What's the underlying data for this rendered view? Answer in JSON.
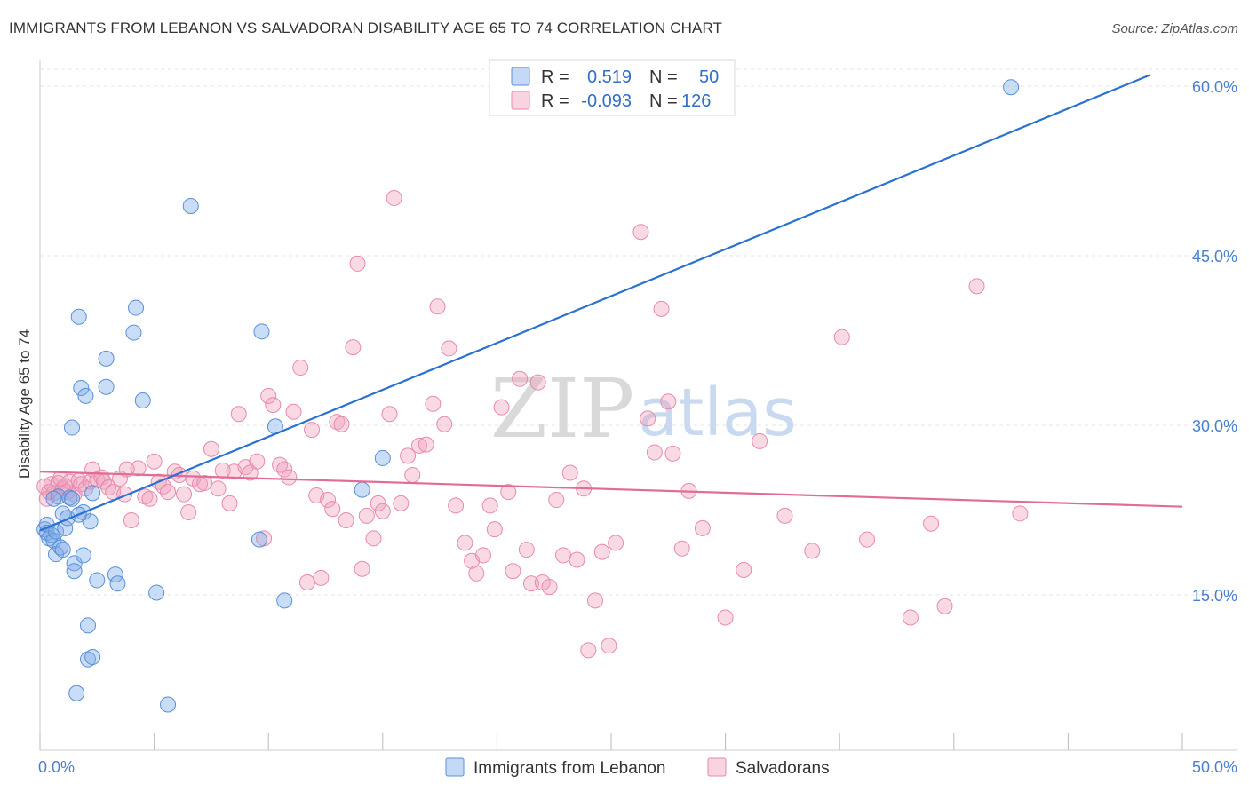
{
  "title": "IMMIGRANTS FROM LEBANON VS SALVADORAN DISABILITY AGE 65 TO 74 CORRELATION CHART",
  "source": "Source: ZipAtlas.com",
  "watermark": {
    "zip": "ZIP",
    "atlas": "atlas"
  },
  "legend": {
    "rows": [
      {
        "r_label": "R =",
        "r_value": "0.519",
        "n_label": "N =",
        "n_value": "50",
        "color": "#7aaae8"
      },
      {
        "r_label": "R =",
        "r_value": "-0.093",
        "n_label": "N =",
        "n_value": "126",
        "color": "#f0a0bc"
      }
    ]
  },
  "bottom_legend": [
    {
      "label": "Immigrants from Lebanon",
      "color": "#7aaae8"
    },
    {
      "label": "Salvadorans",
      "color": "#f0a0bc"
    }
  ],
  "chart_data": {
    "type": "scatter",
    "ylabel": "Disability Age 65 to 74",
    "xlim": [
      0,
      50
    ],
    "ylim": [
      0,
      60
    ],
    "x_tick_labels": [
      "0.0%",
      "50.0%"
    ],
    "y_ticks": [
      15,
      30,
      45,
      60
    ],
    "y_tick_labels": [
      "15.0%",
      "30.0%",
      "45.0%",
      "60.0%"
    ],
    "grid": true,
    "series": [
      {
        "name": "Immigrants from Lebanon",
        "color": "#7aaae8",
        "line_color": "#2a72d0",
        "trend": [
          [
            0,
            20.7
          ],
          [
            48.6,
            61.0
          ]
        ],
        "points": [
          [
            0.2,
            20.8
          ],
          [
            0.3,
            21.2
          ],
          [
            0.3,
            20.5
          ],
          [
            0.4,
            20.0
          ],
          [
            0.5,
            20.3
          ],
          [
            0.6,
            19.8
          ],
          [
            0.7,
            20.6
          ],
          [
            0.7,
            18.6
          ],
          [
            0.8,
            23.7
          ],
          [
            0.9,
            19.2
          ],
          [
            1.0,
            19.0
          ],
          [
            1.0,
            22.2
          ],
          [
            1.1,
            20.9
          ],
          [
            1.2,
            21.8
          ],
          [
            1.3,
            23.6
          ],
          [
            1.4,
            23.5
          ],
          [
            1.4,
            29.8
          ],
          [
            1.5,
            17.8
          ],
          [
            1.5,
            17.1
          ],
          [
            1.6,
            6.3
          ],
          [
            1.7,
            39.6
          ],
          [
            1.8,
            33.3
          ],
          [
            1.9,
            22.3
          ],
          [
            1.9,
            18.5
          ],
          [
            2.0,
            32.6
          ],
          [
            2.1,
            12.3
          ],
          [
            2.1,
            9.3
          ],
          [
            2.2,
            21.5
          ],
          [
            2.3,
            9.5
          ],
          [
            2.5,
            16.3
          ],
          [
            2.9,
            35.9
          ],
          [
            2.9,
            33.4
          ],
          [
            3.3,
            16.8
          ],
          [
            3.4,
            16.0
          ],
          [
            4.1,
            38.2
          ],
          [
            4.2,
            40.4
          ],
          [
            4.5,
            32.2
          ],
          [
            5.1,
            15.2
          ],
          [
            5.6,
            5.3
          ],
          [
            6.6,
            49.4
          ],
          [
            9.6,
            19.9
          ],
          [
            9.7,
            38.3
          ],
          [
            10.3,
            29.9
          ],
          [
            10.7,
            14.5
          ],
          [
            14.1,
            24.3
          ],
          [
            15.0,
            27.1
          ],
          [
            2.3,
            24.0
          ],
          [
            1.7,
            22.1
          ],
          [
            0.6,
            23.5
          ],
          [
            42.5,
            59.9
          ]
        ]
      },
      {
        "name": "Salvadorans",
        "color": "#f0a0bc",
        "line_color": "#e36c96",
        "trend": [
          [
            0,
            25.9
          ],
          [
            50,
            22.8
          ]
        ],
        "points": [
          [
            0.2,
            24.6
          ],
          [
            0.3,
            23.5
          ],
          [
            0.5,
            24.8
          ],
          [
            0.6,
            24.0
          ],
          [
            0.8,
            24.9
          ],
          [
            1.0,
            24.4
          ],
          [
            1.2,
            24.1
          ],
          [
            1.3,
            25.0
          ],
          [
            1.5,
            23.9
          ],
          [
            1.7,
            25.1
          ],
          [
            1.8,
            24.8
          ],
          [
            2.0,
            24.4
          ],
          [
            2.2,
            25.0
          ],
          [
            2.3,
            26.1
          ],
          [
            2.5,
            25.2
          ],
          [
            2.7,
            25.4
          ],
          [
            2.8,
            25.0
          ],
          [
            3.0,
            24.5
          ],
          [
            3.2,
            24.1
          ],
          [
            3.5,
            25.3
          ],
          [
            3.7,
            23.9
          ],
          [
            3.8,
            26.1
          ],
          [
            4.0,
            21.6
          ],
          [
            4.3,
            26.2
          ],
          [
            4.6,
            23.7
          ],
          [
            4.8,
            23.5
          ],
          [
            5.0,
            26.8
          ],
          [
            5.2,
            25.0
          ],
          [
            5.4,
            24.6
          ],
          [
            5.6,
            24.1
          ],
          [
            5.9,
            25.9
          ],
          [
            6.1,
            25.6
          ],
          [
            6.3,
            23.9
          ],
          [
            6.5,
            22.3
          ],
          [
            6.7,
            25.3
          ],
          [
            7.0,
            24.8
          ],
          [
            7.2,
            24.9
          ],
          [
            7.5,
            27.9
          ],
          [
            7.8,
            24.4
          ],
          [
            8.0,
            26.0
          ],
          [
            8.3,
            23.1
          ],
          [
            8.5,
            25.9
          ],
          [
            8.7,
            31.0
          ],
          [
            9.0,
            26.3
          ],
          [
            9.2,
            25.8
          ],
          [
            9.5,
            26.8
          ],
          [
            9.8,
            20.0
          ],
          [
            10.0,
            32.6
          ],
          [
            10.2,
            31.8
          ],
          [
            10.5,
            26.5
          ],
          [
            10.7,
            26.1
          ],
          [
            10.9,
            25.4
          ],
          [
            11.1,
            31.2
          ],
          [
            11.4,
            35.1
          ],
          [
            11.7,
            16.1
          ],
          [
            11.9,
            29.6
          ],
          [
            12.1,
            23.8
          ],
          [
            12.3,
            16.5
          ],
          [
            12.6,
            23.4
          ],
          [
            12.8,
            22.6
          ],
          [
            13.0,
            30.3
          ],
          [
            13.2,
            30.1
          ],
          [
            13.4,
            21.6
          ],
          [
            13.7,
            36.9
          ],
          [
            13.9,
            44.3
          ],
          [
            14.1,
            17.3
          ],
          [
            14.3,
            22.0
          ],
          [
            14.6,
            20.0
          ],
          [
            14.8,
            23.1
          ],
          [
            15.0,
            22.4
          ],
          [
            15.3,
            31.0
          ],
          [
            15.5,
            50.1
          ],
          [
            15.8,
            23.1
          ],
          [
            16.1,
            27.3
          ],
          [
            16.3,
            25.6
          ],
          [
            16.6,
            28.2
          ],
          [
            16.9,
            28.3
          ],
          [
            17.2,
            31.9
          ],
          [
            17.4,
            40.5
          ],
          [
            17.7,
            30.1
          ],
          [
            17.9,
            36.8
          ],
          [
            18.2,
            22.9
          ],
          [
            18.6,
            19.6
          ],
          [
            18.9,
            18.0
          ],
          [
            19.1,
            16.9
          ],
          [
            19.4,
            18.5
          ],
          [
            19.7,
            22.9
          ],
          [
            19.9,
            20.8
          ],
          [
            20.2,
            31.6
          ],
          [
            20.5,
            24.1
          ],
          [
            20.7,
            17.1
          ],
          [
            21.0,
            34.1
          ],
          [
            21.3,
            19.0
          ],
          [
            21.5,
            16.0
          ],
          [
            21.8,
            33.8
          ],
          [
            22.0,
            16.1
          ],
          [
            22.3,
            15.7
          ],
          [
            22.6,
            23.4
          ],
          [
            22.9,
            18.5
          ],
          [
            23.2,
            25.8
          ],
          [
            23.5,
            18.1
          ],
          [
            23.8,
            24.4
          ],
          [
            24.0,
            10.1
          ],
          [
            24.3,
            14.5
          ],
          [
            24.6,
            18.8
          ],
          [
            24.9,
            10.5
          ],
          [
            25.2,
            19.6
          ],
          [
            26.3,
            47.1
          ],
          [
            26.6,
            30.6
          ],
          [
            26.9,
            27.6
          ],
          [
            27.2,
            40.3
          ],
          [
            27.5,
            32.1
          ],
          [
            27.7,
            27.5
          ],
          [
            28.1,
            19.1
          ],
          [
            28.4,
            24.2
          ],
          [
            29.0,
            20.9
          ],
          [
            30.0,
            13.0
          ],
          [
            30.8,
            17.2
          ],
          [
            31.5,
            28.6
          ],
          [
            32.6,
            22.0
          ],
          [
            33.8,
            18.9
          ],
          [
            35.1,
            37.8
          ],
          [
            36.2,
            19.9
          ],
          [
            38.1,
            13.0
          ],
          [
            39.0,
            21.3
          ],
          [
            39.6,
            14.0
          ],
          [
            41.0,
            42.3
          ],
          [
            42.9,
            22.2
          ],
          [
            0.4,
            24.1
          ],
          [
            1.1,
            24.6
          ],
          [
            0.9,
            25.3
          ]
        ]
      }
    ]
  }
}
